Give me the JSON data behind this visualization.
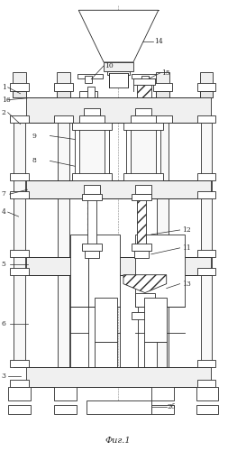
{
  "title": "Фиг.1",
  "bg_color": "#ffffff",
  "lc": "#2a2a2a",
  "fig_width": 2.63,
  "fig_height": 5.0,
  "dpi": 100
}
